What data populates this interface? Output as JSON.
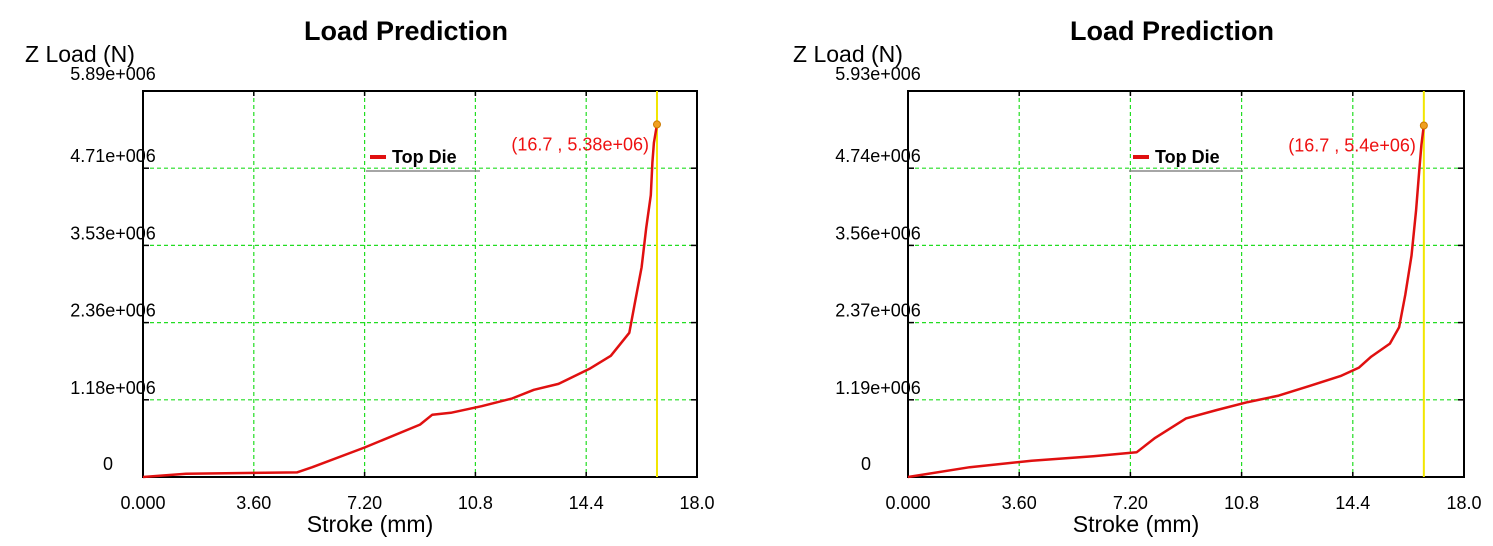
{
  "colors": {
    "series": "#e01010",
    "grid": "#22dd22",
    "cursor": "#f2e600",
    "marker": "#f0a020",
    "readout": "#ee1111",
    "frame": "#000000"
  },
  "chart_data": [
    {
      "type": "line",
      "title": "Load Prediction",
      "ylabel": "Z Load (N)",
      "xlabel": "Stroke (mm)",
      "xlim": [
        0,
        18
      ],
      "ylim": [
        0,
        5890000
      ],
      "x_ticks": [
        "0.000",
        "3.60",
        "7.20",
        "10.8",
        "14.4",
        "18.0"
      ],
      "y_ticks": [
        "0",
        "1.18e+006",
        "2.36e+006",
        "3.53e+006",
        "4.71e+006",
        "5.89e+006"
      ],
      "grid": true,
      "legend": "top-center",
      "cursor_x": 16.7,
      "readout": "(16.7 , 5.38e+06)",
      "series": [
        {
          "name": "Top Die",
          "x": [
            0.0,
            1.4,
            5.0,
            5.5,
            7.2,
            9.0,
            9.4,
            10.0,
            11.0,
            12.0,
            12.7,
            13.5,
            14.5,
            15.2,
            15.8,
            16.0,
            16.2,
            16.35,
            16.5,
            16.55,
            16.6,
            16.7
          ],
          "y": [
            0,
            50000,
            70000,
            150000,
            450000,
            800000,
            950000,
            980000,
            1080000,
            1200000,
            1330000,
            1420000,
            1650000,
            1850000,
            2200000,
            2700000,
            3200000,
            3800000,
            4300000,
            4800000,
            5100000,
            5380000
          ]
        }
      ]
    },
    {
      "type": "line",
      "title": "Load Prediction",
      "ylabel": "Z Load (N)",
      "xlabel": "Stroke (mm)",
      "xlim": [
        0,
        18
      ],
      "ylim": [
        0,
        5930000
      ],
      "x_ticks": [
        "0.000",
        "3.60",
        "7.20",
        "10.8",
        "14.4",
        "18.0"
      ],
      "y_ticks": [
        "0",
        "1.19e+006",
        "2.37e+006",
        "3.56e+006",
        "4.74e+006",
        "5.93e+006"
      ],
      "grid": true,
      "legend": "top-center",
      "cursor_x": 16.7,
      "readout": "(16.7 , 5.4e+06)",
      "series": [
        {
          "name": "Top Die",
          "x": [
            0.0,
            2.0,
            4.0,
            6.0,
            7.4,
            8.0,
            9.0,
            10.0,
            11.0,
            12.0,
            13.0,
            14.0,
            14.6,
            15.0,
            15.6,
            15.9,
            16.1,
            16.3,
            16.45,
            16.55,
            16.62,
            16.7
          ],
          "y": [
            0,
            150000,
            250000,
            320000,
            380000,
            600000,
            900000,
            1030000,
            1150000,
            1250000,
            1400000,
            1550000,
            1680000,
            1850000,
            2050000,
            2300000,
            2800000,
            3400000,
            4100000,
            4700000,
            5100000,
            5400000
          ]
        }
      ]
    }
  ]
}
